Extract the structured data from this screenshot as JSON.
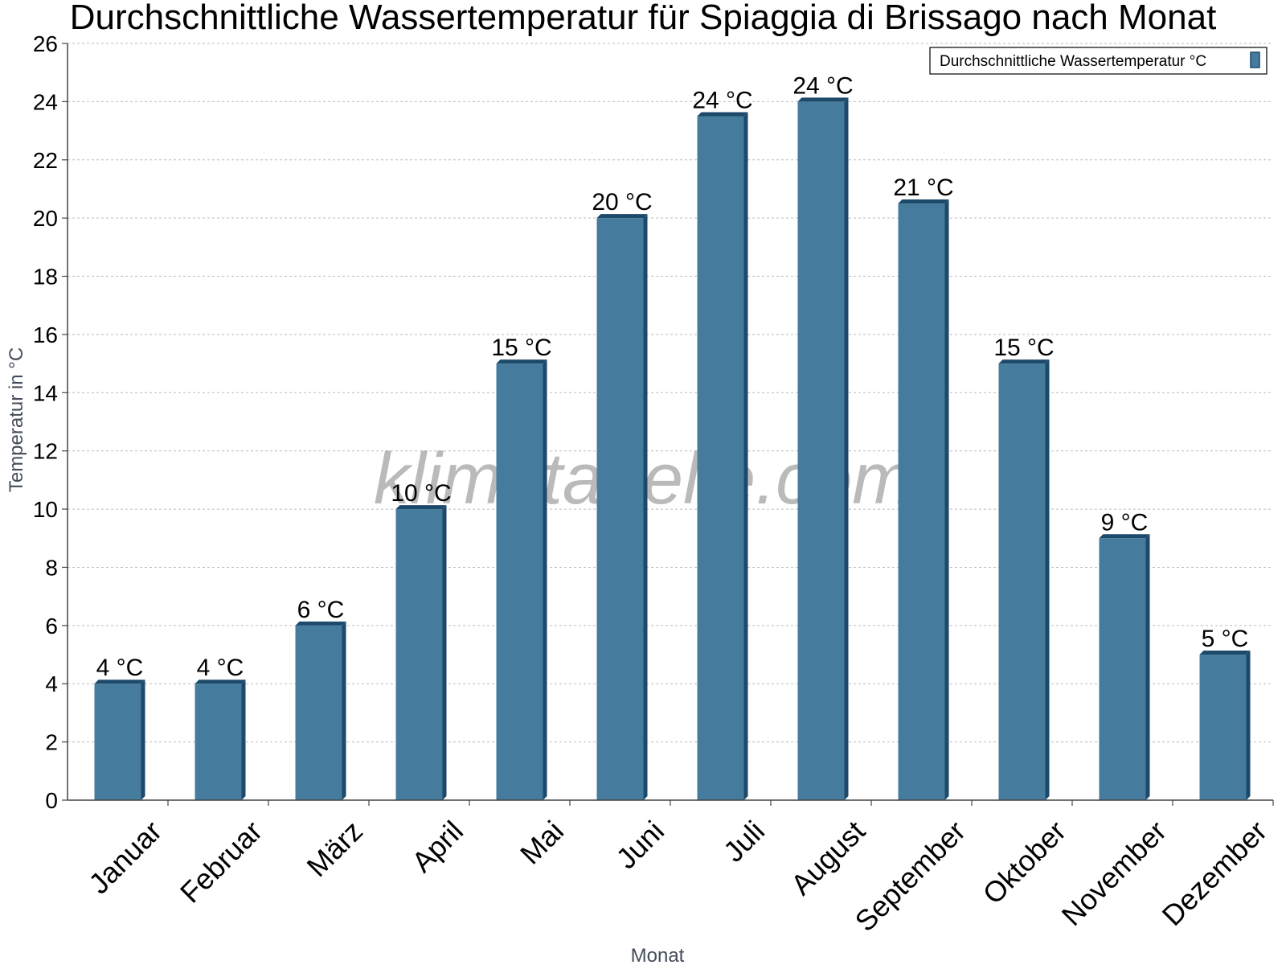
{
  "chart_data": {
    "type": "bar",
    "title": "Durchschnittliche Wassertemperatur für Spiaggia di Brissago nach Monat",
    "xlabel": "Monat",
    "ylabel": "Temperatur in °C",
    "categories": [
      "Januar",
      "Februar",
      "März",
      "April",
      "Mai",
      "Juni",
      "Juli",
      "August",
      "September",
      "Oktober",
      "November",
      "Dezember"
    ],
    "series": [
      {
        "name": "Durchschnittliche Wassertemperatur °C",
        "values": [
          4,
          4,
          6,
          10,
          15,
          20,
          23.5,
          24,
          20.5,
          15,
          9,
          5
        ],
        "labels": [
          "4 °C",
          "4 °C",
          "6 °C",
          "10 °C",
          "15 °C",
          "20 °C",
          "24 °C",
          "24 °C",
          "21 °C",
          "15 °C",
          "9 °C",
          "5 °C"
        ]
      }
    ],
    "ylim": [
      0,
      26
    ],
    "yticks": [
      0,
      2,
      4,
      6,
      8,
      10,
      12,
      14,
      16,
      18,
      20,
      22,
      24,
      26
    ],
    "grid": true,
    "legend_position": "top-right",
    "watermark": "klimatabelle.com",
    "colors": {
      "bar": "#457b9d",
      "bar_side": "#1d4a6b",
      "grid": "#bbbbbb",
      "axis": "#444444"
    }
  }
}
